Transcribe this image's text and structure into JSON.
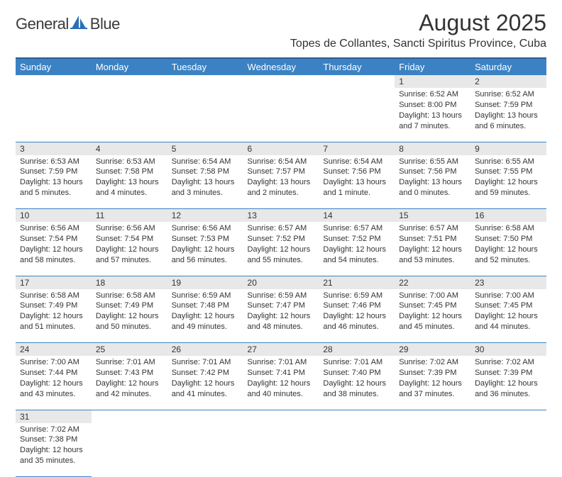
{
  "logo": {
    "text1": "General",
    "text2": "Blue",
    "icon_fill": "#2a6fb5"
  },
  "title": "August 2025",
  "location": "Topes de Collantes, Sancti Spiritus Province, Cuba",
  "theme": {
    "header_bg": "#3b82c4",
    "header_border": "#2a5f8f",
    "daynum_bg": "#e8e8e8",
    "rule": "#3b82c4"
  },
  "day_headers": [
    "Sunday",
    "Monday",
    "Tuesday",
    "Wednesday",
    "Thursday",
    "Friday",
    "Saturday"
  ],
  "weeks": [
    [
      null,
      null,
      null,
      null,
      null,
      {
        "n": "1",
        "sr": "Sunrise: 6:52 AM",
        "ss": "Sunset: 8:00 PM",
        "dl": "Daylight: 13 hours and 7 minutes."
      },
      {
        "n": "2",
        "sr": "Sunrise: 6:52 AM",
        "ss": "Sunset: 7:59 PM",
        "dl": "Daylight: 13 hours and 6 minutes."
      }
    ],
    [
      {
        "n": "3",
        "sr": "Sunrise: 6:53 AM",
        "ss": "Sunset: 7:59 PM",
        "dl": "Daylight: 13 hours and 5 minutes."
      },
      {
        "n": "4",
        "sr": "Sunrise: 6:53 AM",
        "ss": "Sunset: 7:58 PM",
        "dl": "Daylight: 13 hours and 4 minutes."
      },
      {
        "n": "5",
        "sr": "Sunrise: 6:54 AM",
        "ss": "Sunset: 7:58 PM",
        "dl": "Daylight: 13 hours and 3 minutes."
      },
      {
        "n": "6",
        "sr": "Sunrise: 6:54 AM",
        "ss": "Sunset: 7:57 PM",
        "dl": "Daylight: 13 hours and 2 minutes."
      },
      {
        "n": "7",
        "sr": "Sunrise: 6:54 AM",
        "ss": "Sunset: 7:56 PM",
        "dl": "Daylight: 13 hours and 1 minute."
      },
      {
        "n": "8",
        "sr": "Sunrise: 6:55 AM",
        "ss": "Sunset: 7:56 PM",
        "dl": "Daylight: 13 hours and 0 minutes."
      },
      {
        "n": "9",
        "sr": "Sunrise: 6:55 AM",
        "ss": "Sunset: 7:55 PM",
        "dl": "Daylight: 12 hours and 59 minutes."
      }
    ],
    [
      {
        "n": "10",
        "sr": "Sunrise: 6:56 AM",
        "ss": "Sunset: 7:54 PM",
        "dl": "Daylight: 12 hours and 58 minutes."
      },
      {
        "n": "11",
        "sr": "Sunrise: 6:56 AM",
        "ss": "Sunset: 7:54 PM",
        "dl": "Daylight: 12 hours and 57 minutes."
      },
      {
        "n": "12",
        "sr": "Sunrise: 6:56 AM",
        "ss": "Sunset: 7:53 PM",
        "dl": "Daylight: 12 hours and 56 minutes."
      },
      {
        "n": "13",
        "sr": "Sunrise: 6:57 AM",
        "ss": "Sunset: 7:52 PM",
        "dl": "Daylight: 12 hours and 55 minutes."
      },
      {
        "n": "14",
        "sr": "Sunrise: 6:57 AM",
        "ss": "Sunset: 7:52 PM",
        "dl": "Daylight: 12 hours and 54 minutes."
      },
      {
        "n": "15",
        "sr": "Sunrise: 6:57 AM",
        "ss": "Sunset: 7:51 PM",
        "dl": "Daylight: 12 hours and 53 minutes."
      },
      {
        "n": "16",
        "sr": "Sunrise: 6:58 AM",
        "ss": "Sunset: 7:50 PM",
        "dl": "Daylight: 12 hours and 52 minutes."
      }
    ],
    [
      {
        "n": "17",
        "sr": "Sunrise: 6:58 AM",
        "ss": "Sunset: 7:49 PM",
        "dl": "Daylight: 12 hours and 51 minutes."
      },
      {
        "n": "18",
        "sr": "Sunrise: 6:58 AM",
        "ss": "Sunset: 7:49 PM",
        "dl": "Daylight: 12 hours and 50 minutes."
      },
      {
        "n": "19",
        "sr": "Sunrise: 6:59 AM",
        "ss": "Sunset: 7:48 PM",
        "dl": "Daylight: 12 hours and 49 minutes."
      },
      {
        "n": "20",
        "sr": "Sunrise: 6:59 AM",
        "ss": "Sunset: 7:47 PM",
        "dl": "Daylight: 12 hours and 48 minutes."
      },
      {
        "n": "21",
        "sr": "Sunrise: 6:59 AM",
        "ss": "Sunset: 7:46 PM",
        "dl": "Daylight: 12 hours and 46 minutes."
      },
      {
        "n": "22",
        "sr": "Sunrise: 7:00 AM",
        "ss": "Sunset: 7:45 PM",
        "dl": "Daylight: 12 hours and 45 minutes."
      },
      {
        "n": "23",
        "sr": "Sunrise: 7:00 AM",
        "ss": "Sunset: 7:45 PM",
        "dl": "Daylight: 12 hours and 44 minutes."
      }
    ],
    [
      {
        "n": "24",
        "sr": "Sunrise: 7:00 AM",
        "ss": "Sunset: 7:44 PM",
        "dl": "Daylight: 12 hours and 43 minutes."
      },
      {
        "n": "25",
        "sr": "Sunrise: 7:01 AM",
        "ss": "Sunset: 7:43 PM",
        "dl": "Daylight: 12 hours and 42 minutes."
      },
      {
        "n": "26",
        "sr": "Sunrise: 7:01 AM",
        "ss": "Sunset: 7:42 PM",
        "dl": "Daylight: 12 hours and 41 minutes."
      },
      {
        "n": "27",
        "sr": "Sunrise: 7:01 AM",
        "ss": "Sunset: 7:41 PM",
        "dl": "Daylight: 12 hours and 40 minutes."
      },
      {
        "n": "28",
        "sr": "Sunrise: 7:01 AM",
        "ss": "Sunset: 7:40 PM",
        "dl": "Daylight: 12 hours and 38 minutes."
      },
      {
        "n": "29",
        "sr": "Sunrise: 7:02 AM",
        "ss": "Sunset: 7:39 PM",
        "dl": "Daylight: 12 hours and 37 minutes."
      },
      {
        "n": "30",
        "sr": "Sunrise: 7:02 AM",
        "ss": "Sunset: 7:39 PM",
        "dl": "Daylight: 12 hours and 36 minutes."
      }
    ],
    [
      {
        "n": "31",
        "sr": "Sunrise: 7:02 AM",
        "ss": "Sunset: 7:38 PM",
        "dl": "Daylight: 12 hours and 35 minutes."
      },
      null,
      null,
      null,
      null,
      null,
      null
    ]
  ]
}
